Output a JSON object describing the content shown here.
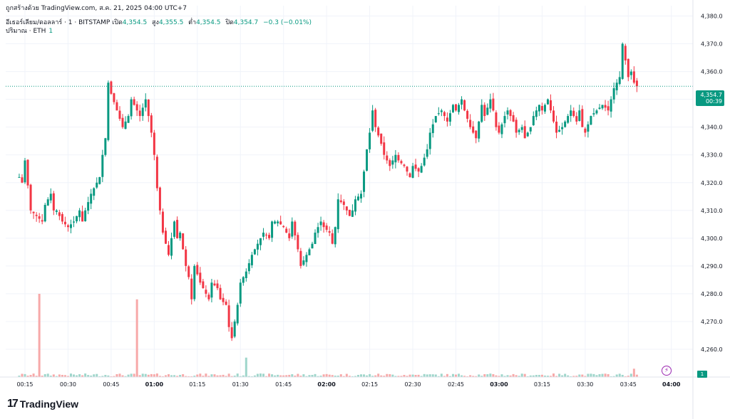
{
  "header": {
    "credit": "ถูกสร้างด้วย TradingView.com, ส.ค. 21, 2025 04:00 UTC+7",
    "symbol": "อีเธอร์เลียม/ดอลลาร์ · 1 · BITSTAMP",
    "open_label": "เปิด",
    "open_value": "4,354.5",
    "high_label": "สูง",
    "high_value": "4,355.5",
    "low_label": "ต่ำ",
    "low_value": "4,354.5",
    "close_label": "ปิด",
    "close_value": "4,354.7",
    "change": "−0.3 (−0.01%)",
    "volume_label": "ปริมาณ · ETH",
    "volume_value": "1"
  },
  "price_badge": {
    "price": "4,354.7",
    "countdown": "00:39"
  },
  "volume_badge": "1",
  "brand": {
    "mark": "17",
    "name": "TradingView"
  },
  "colors": {
    "up": "#089981",
    "down": "#f23645",
    "grid": "#f0f3fa",
    "axis_text": "#131722"
  },
  "chart_data": {
    "type": "candlestick",
    "y_ticks": [
      "4,260.0",
      "4,270.0",
      "4,280.0",
      "4,290.0",
      "4,300.0",
      "4,310.0",
      "4,320.0",
      "4,330.0",
      "4,340.0",
      "4,350.0",
      "4,360.0",
      "4,370.0",
      "4,380.0"
    ],
    "y_tick_values": [
      4260,
      4270,
      4280,
      4290,
      4300,
      4310,
      4320,
      4330,
      4340,
      4350,
      4360,
      4370,
      4380
    ],
    "ylim": [
      4254,
      4384
    ],
    "x_ticks": [
      "00:15",
      "00:30",
      "00:45",
      "01:00",
      "01:15",
      "01:30",
      "01:45",
      "02:00",
      "02:15",
      "02:30",
      "02:45",
      "03:00",
      "03:15",
      "03:30",
      "03:45",
      "04:00"
    ],
    "x_tick_minutes": [
      15,
      30,
      45,
      60,
      75,
      90,
      105,
      120,
      135,
      150,
      165,
      180,
      195,
      210,
      225,
      240
    ],
    "x_start_minute": 13,
    "last_price": 4354.7,
    "close_path": [
      [
        13,
        4322
      ],
      [
        14,
        4320
      ],
      [
        15,
        4328
      ],
      [
        17,
        4310
      ],
      [
        19,
        4308
      ],
      [
        21,
        4306
      ],
      [
        22,
        4312
      ],
      [
        24,
        4316
      ],
      [
        25,
        4310
      ],
      [
        26,
        4310
      ],
      [
        28,
        4306
      ],
      [
        30,
        4304
      ],
      [
        32,
        4306
      ],
      [
        34,
        4310
      ],
      [
        35,
        4306
      ],
      [
        36,
        4310
      ],
      [
        38,
        4316
      ],
      [
        41,
        4322
      ],
      [
        42,
        4330
      ],
      [
        43,
        4336
      ],
      [
        44,
        4356
      ],
      [
        45,
        4352
      ],
      [
        47,
        4346
      ],
      [
        49,
        4340
      ],
      [
        51,
        4344
      ],
      [
        52,
        4350
      ],
      [
        54,
        4346
      ],
      [
        55,
        4344
      ],
      [
        57,
        4350
      ],
      [
        58,
        4344
      ],
      [
        59,
        4338
      ],
      [
        60,
        4330
      ],
      [
        61,
        4318
      ],
      [
        62,
        4310
      ],
      [
        63,
        4302
      ],
      [
        65,
        4294
      ],
      [
        67,
        4306
      ],
      [
        68,
        4300
      ],
      [
        69,
        4302
      ],
      [
        71,
        4290
      ],
      [
        72,
        4286
      ],
      [
        73,
        4278
      ],
      [
        74,
        4290
      ],
      [
        76,
        4284
      ],
      [
        78,
        4280
      ],
      [
        79,
        4278
      ],
      [
        80,
        4284
      ],
      [
        82,
        4282
      ],
      [
        83,
        4278
      ],
      [
        85,
        4276
      ],
      [
        86,
        4268
      ],
      [
        87,
        4264
      ],
      [
        88,
        4270
      ],
      [
        89,
        4276
      ],
      [
        90,
        4284
      ],
      [
        92,
        4288
      ],
      [
        94,
        4294
      ],
      [
        96,
        4298
      ],
      [
        98,
        4302
      ],
      [
        100,
        4300
      ],
      [
        101,
        4306
      ],
      [
        103,
        4306
      ],
      [
        105,
        4304
      ],
      [
        107,
        4300
      ],
      [
        108,
        4306
      ],
      [
        110,
        4296
      ],
      [
        111,
        4290
      ],
      [
        113,
        4294
      ],
      [
        115,
        4298
      ],
      [
        116,
        4302
      ],
      [
        118,
        4306
      ],
      [
        119,
        4304
      ],
      [
        121,
        4302
      ],
      [
        122,
        4298
      ],
      [
        123,
        4304
      ],
      [
        124,
        4314
      ],
      [
        126,
        4312
      ],
      [
        128,
        4308
      ],
      [
        129,
        4310
      ],
      [
        130,
        4314
      ],
      [
        132,
        4316
      ],
      [
        133,
        4324
      ],
      [
        134,
        4332
      ],
      [
        135,
        4338
      ],
      [
        136,
        4346
      ],
      [
        137,
        4340
      ],
      [
        139,
        4334
      ],
      [
        140,
        4330
      ],
      [
        142,
        4326
      ],
      [
        144,
        4330
      ],
      [
        145,
        4328
      ],
      [
        147,
        4326
      ],
      [
        149,
        4322
      ],
      [
        150,
        4326
      ],
      [
        152,
        4324
      ],
      [
        153,
        4326
      ],
      [
        155,
        4332
      ],
      [
        156,
        4338
      ],
      [
        158,
        4344
      ],
      [
        160,
        4346
      ],
      [
        162,
        4342
      ],
      [
        164,
        4348
      ],
      [
        165,
        4346
      ],
      [
        167,
        4350
      ],
      [
        168,
        4346
      ],
      [
        170,
        4340
      ],
      [
        172,
        4336
      ],
      [
        173,
        4342
      ],
      [
        174,
        4348
      ],
      [
        175,
        4344
      ],
      [
        177,
        4350
      ],
      [
        178,
        4346
      ],
      [
        179,
        4340
      ],
      [
        180,
        4338
      ],
      [
        182,
        4344
      ],
      [
        183,
        4346
      ],
      [
        185,
        4342
      ],
      [
        186,
        4338
      ],
      [
        188,
        4340
      ],
      [
        189,
        4336
      ],
      [
        191,
        4340
      ],
      [
        192,
        4344
      ],
      [
        194,
        4348
      ],
      [
        195,
        4346
      ],
      [
        197,
        4350
      ],
      [
        198,
        4346
      ],
      [
        199,
        4342
      ],
      [
        200,
        4338
      ],
      [
        202,
        4340
      ],
      [
        204,
        4344
      ],
      [
        205,
        4346
      ],
      [
        207,
        4342
      ],
      [
        208,
        4346
      ],
      [
        209,
        4340
      ],
      [
        210,
        4338
      ],
      [
        212,
        4344
      ],
      [
        214,
        4346
      ],
      [
        216,
        4348
      ],
      [
        218,
        4346
      ],
      [
        219,
        4350
      ],
      [
        220,
        4354
      ],
      [
        222,
        4358
      ],
      [
        223,
        4370
      ],
      [
        224,
        4364
      ],
      [
        225,
        4358
      ],
      [
        226,
        4360
      ],
      [
        227,
        4356
      ],
      [
        228,
        4354.7
      ]
    ],
    "volume_spikes": [
      {
        "minute": 20,
        "volume": 30,
        "direction": "down"
      },
      {
        "minute": 54,
        "volume": 28,
        "direction": "down"
      },
      {
        "minute": 92,
        "volume": 7,
        "direction": "up"
      },
      {
        "minute": 227,
        "volume": 3,
        "direction": "down"
      }
    ]
  }
}
